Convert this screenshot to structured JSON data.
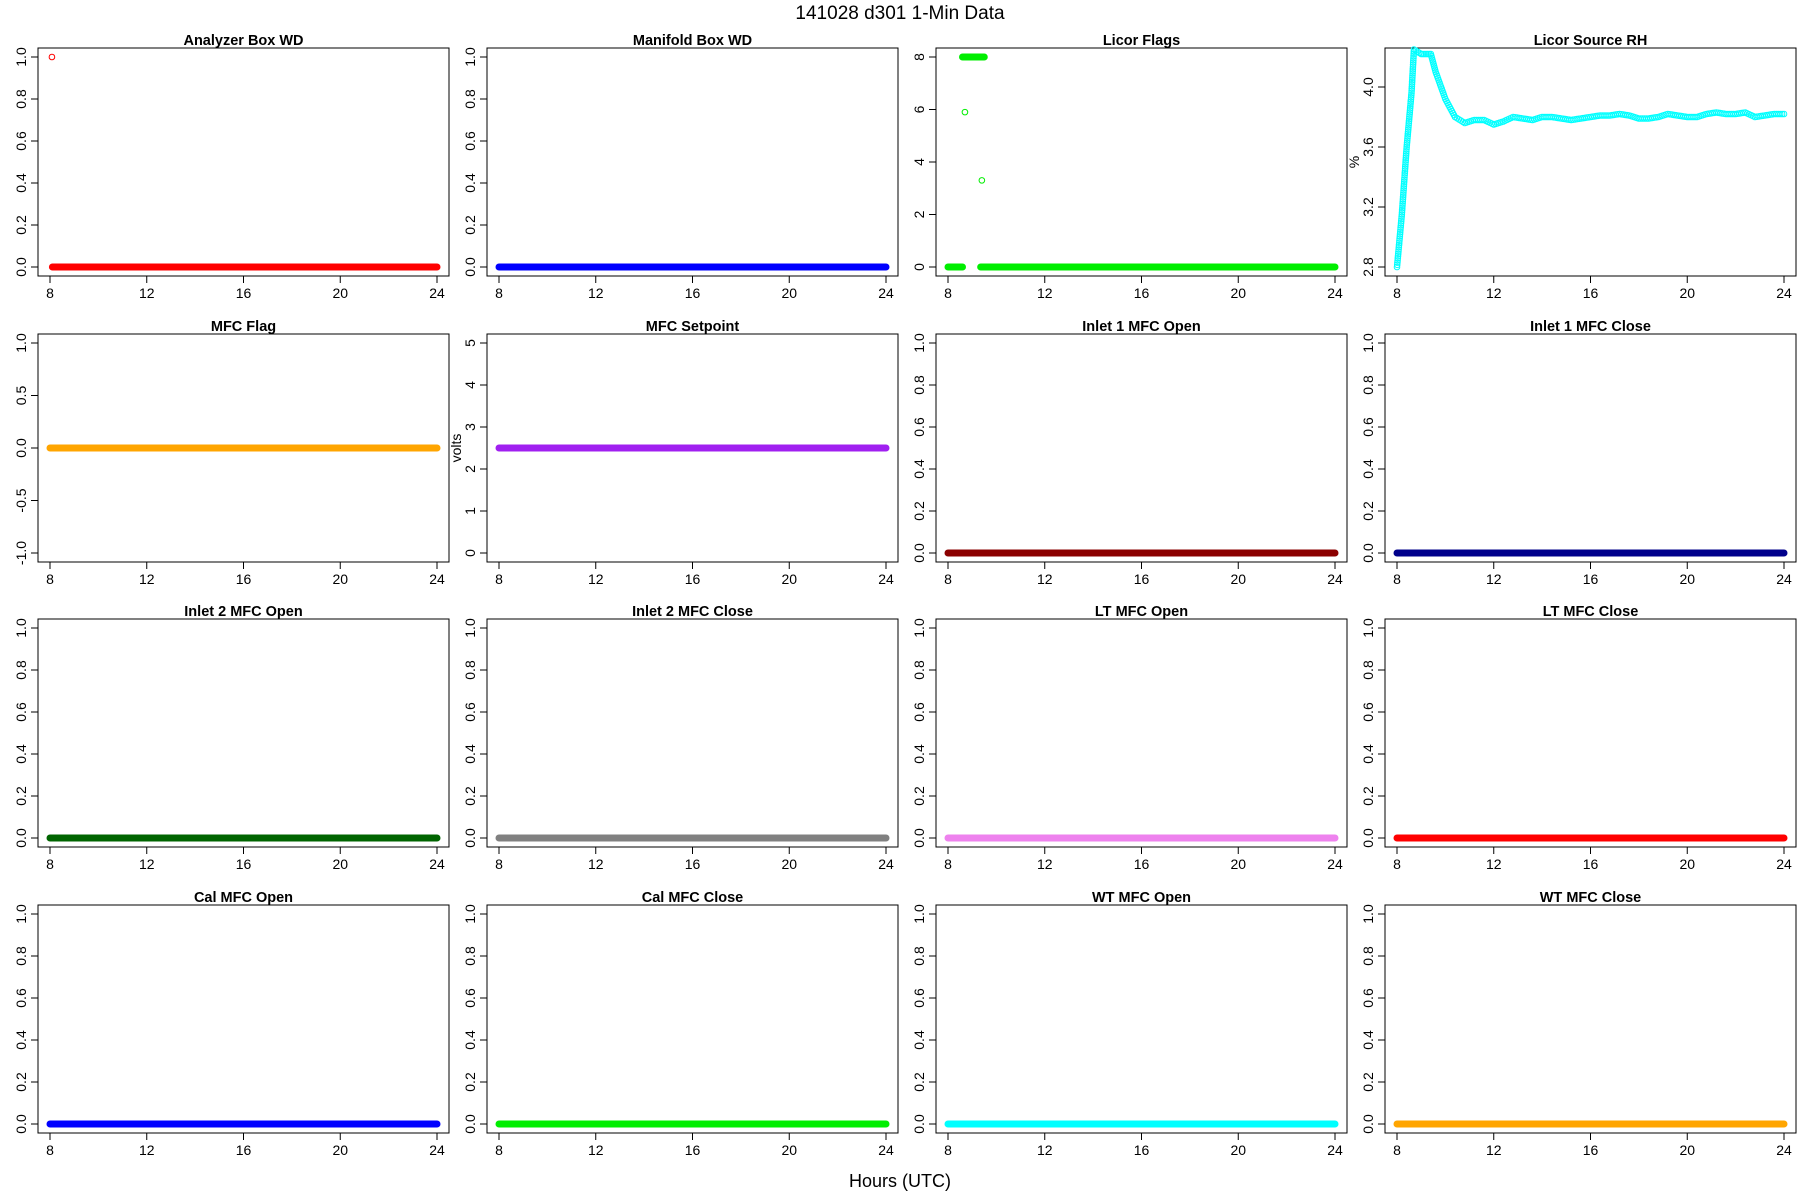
{
  "page": {
    "title": "141028   d301   1-Min Data",
    "xlabel": "Hours (UTC)"
  },
  "chart_data": [
    {
      "type": "scatter",
      "title": "Analyzer Box WD",
      "ylabel": "",
      "color": "#ff0000",
      "xlim": [
        8,
        24
      ],
      "ylim": [
        0,
        1
      ],
      "xticks": [
        8,
        12,
        16,
        20,
        24
      ],
      "yticks": [
        0,
        0.2,
        0.4,
        0.6,
        0.8,
        1
      ],
      "ytick_labels": [
        "0.0",
        "0.2",
        "0.4",
        "0.6",
        "0.8",
        "1.0"
      ],
      "series": [
        {
          "points": [
            [
              8.08,
              1
            ]
          ],
          "segments": [
            [
              8.1,
              24,
              0
            ]
          ]
        }
      ]
    },
    {
      "type": "scatter",
      "title": "Manifold Box WD",
      "ylabel": "",
      "color": "#0000ff",
      "xlim": [
        8,
        24
      ],
      "ylim": [
        0,
        1
      ],
      "xticks": [
        8,
        12,
        16,
        20,
        24
      ],
      "yticks": [
        0,
        0.2,
        0.4,
        0.6,
        0.8,
        1
      ],
      "ytick_labels": [
        "0.0",
        "0.2",
        "0.4",
        "0.6",
        "0.8",
        "1.0"
      ],
      "series": [
        {
          "points": [],
          "segments": [
            [
              8,
              24,
              0
            ]
          ]
        }
      ]
    },
    {
      "type": "scatter",
      "title": "Licor Flags",
      "ylabel": "",
      "color": "#00ee00",
      "xlim": [
        8,
        24
      ],
      "ylim": [
        0,
        8
      ],
      "xticks": [
        8,
        12,
        16,
        20,
        24
      ],
      "yticks": [
        0,
        2,
        4,
        6,
        8
      ],
      "ytick_labels": [
        "0",
        "2",
        "4",
        "6",
        "8"
      ],
      "series": [
        {
          "points": [
            [
              8.7,
              5.9
            ],
            [
              9.4,
              3.3
            ]
          ],
          "segments": [
            [
              8,
              8.6,
              0
            ],
            [
              8.6,
              9.5,
              8
            ],
            [
              9.35,
              24,
              0
            ]
          ]
        }
      ]
    },
    {
      "type": "scatter",
      "title": "Licor Source RH",
      "ylabel": "%",
      "color": "#00ffff",
      "xlim": [
        8,
        24
      ],
      "ylim": [
        2.8,
        4.2
      ],
      "xticks": [
        8,
        12,
        16,
        20,
        24
      ],
      "yticks": [
        2.8,
        3.2,
        3.6,
        4.0
      ],
      "ytick_labels": [
        "2.8",
        "3.2",
        "3.6",
        "4.0"
      ],
      "series": [
        {
          "x": [
            8,
            8.2,
            8.4,
            8.6,
            8.7,
            9,
            9.2,
            9.4,
            9.6,
            10,
            10.4,
            10.8,
            11.2,
            11.6,
            12,
            12.4,
            12.8,
            13.2,
            13.6,
            14,
            14.4,
            14.8,
            15.2,
            15.6,
            16,
            16.4,
            16.8,
            17.2,
            17.6,
            18,
            18.4,
            18.8,
            19.2,
            19.6,
            20,
            20.4,
            20.8,
            21.2,
            21.6,
            22,
            22.4,
            22.8,
            23.2,
            23.6,
            24
          ],
          "y": [
            2.8,
            3.15,
            3.6,
            3.96,
            4.25,
            4.22,
            4.22,
            4.22,
            4.1,
            3.92,
            3.8,
            3.76,
            3.78,
            3.78,
            3.75,
            3.77,
            3.8,
            3.79,
            3.78,
            3.8,
            3.8,
            3.79,
            3.78,
            3.79,
            3.8,
            3.81,
            3.81,
            3.82,
            3.81,
            3.79,
            3.79,
            3.8,
            3.82,
            3.81,
            3.8,
            3.8,
            3.82,
            3.83,
            3.82,
            3.82,
            3.83,
            3.8,
            3.81,
            3.82,
            3.82
          ]
        }
      ]
    },
    {
      "type": "scatter",
      "title": "MFC Flag",
      "ylabel": "",
      "color": "#ffa500",
      "xlim": [
        8,
        24
      ],
      "ylim": [
        -1,
        1
      ],
      "xticks": [
        8,
        12,
        16,
        20,
        24
      ],
      "yticks": [
        -1,
        -0.5,
        0,
        0.5,
        1
      ],
      "ytick_labels": [
        "-1.0",
        "-0.5",
        "0.0",
        "0.5",
        "1.0"
      ],
      "series": [
        {
          "points": [],
          "segments": [
            [
              8,
              24,
              0
            ]
          ]
        }
      ]
    },
    {
      "type": "scatter",
      "title": "MFC Setpoint",
      "ylabel": "volts",
      "color": "#a020f0",
      "xlim": [
        8,
        24
      ],
      "ylim": [
        0,
        5
      ],
      "xticks": [
        8,
        12,
        16,
        20,
        24
      ],
      "yticks": [
        0,
        1,
        2,
        3,
        4,
        5
      ],
      "ytick_labels": [
        "0",
        "1",
        "2",
        "3",
        "4",
        "5"
      ],
      "series": [
        {
          "points": [],
          "segments": [
            [
              8,
              24,
              2.5
            ]
          ]
        }
      ]
    },
    {
      "type": "scatter",
      "title": "Inlet 1 MFC Open",
      "ylabel": "",
      "color": "#8b0000",
      "xlim": [
        8,
        24
      ],
      "ylim": [
        0,
        1
      ],
      "xticks": [
        8,
        12,
        16,
        20,
        24
      ],
      "yticks": [
        0,
        0.2,
        0.4,
        0.6,
        0.8,
        1
      ],
      "ytick_labels": [
        "0.0",
        "0.2",
        "0.4",
        "0.6",
        "0.8",
        "1.0"
      ],
      "series": [
        {
          "points": [],
          "segments": [
            [
              8,
              24,
              0
            ]
          ]
        }
      ]
    },
    {
      "type": "scatter",
      "title": "Inlet 1 MFC Close",
      "ylabel": "",
      "color": "#00008b",
      "xlim": [
        8,
        24
      ],
      "ylim": [
        0,
        1
      ],
      "xticks": [
        8,
        12,
        16,
        20,
        24
      ],
      "yticks": [
        0,
        0.2,
        0.4,
        0.6,
        0.8,
        1
      ],
      "ytick_labels": [
        "0.0",
        "0.2",
        "0.4",
        "0.6",
        "0.8",
        "1.0"
      ],
      "series": [
        {
          "points": [],
          "segments": [
            [
              8,
              24,
              0
            ]
          ]
        }
      ]
    },
    {
      "type": "scatter",
      "title": "Inlet 2 MFC Open",
      "ylabel": "",
      "color": "#006400",
      "xlim": [
        8,
        24
      ],
      "ylim": [
        0,
        1
      ],
      "xticks": [
        8,
        12,
        16,
        20,
        24
      ],
      "yticks": [
        0,
        0.2,
        0.4,
        0.6,
        0.8,
        1
      ],
      "ytick_labels": [
        "0.0",
        "0.2",
        "0.4",
        "0.6",
        "0.8",
        "1.0"
      ],
      "series": [
        {
          "points": [],
          "segments": [
            [
              8,
              24,
              0
            ]
          ]
        }
      ]
    },
    {
      "type": "scatter",
      "title": "Inlet 2 MFC Close",
      "ylabel": "",
      "color": "#808080",
      "xlim": [
        8,
        24
      ],
      "ylim": [
        0,
        1
      ],
      "xticks": [
        8,
        12,
        16,
        20,
        24
      ],
      "yticks": [
        0,
        0.2,
        0.4,
        0.6,
        0.8,
        1
      ],
      "ytick_labels": [
        "0.0",
        "0.2",
        "0.4",
        "0.6",
        "0.8",
        "1.0"
      ],
      "series": [
        {
          "points": [],
          "segments": [
            [
              8,
              24,
              0
            ]
          ]
        }
      ]
    },
    {
      "type": "scatter",
      "title": "LT MFC Open",
      "ylabel": "",
      "color": "#ee82ee",
      "xlim": [
        8,
        24
      ],
      "ylim": [
        0,
        1
      ],
      "xticks": [
        8,
        12,
        16,
        20,
        24
      ],
      "yticks": [
        0,
        0.2,
        0.4,
        0.6,
        0.8,
        1
      ],
      "ytick_labels": [
        "0.0",
        "0.2",
        "0.4",
        "0.6",
        "0.8",
        "1.0"
      ],
      "series": [
        {
          "points": [],
          "segments": [
            [
              8,
              24,
              0
            ]
          ]
        }
      ]
    },
    {
      "type": "scatter",
      "title": "LT MFC Close",
      "ylabel": "",
      "color": "#ff0000",
      "xlim": [
        8,
        24
      ],
      "ylim": [
        0,
        1
      ],
      "xticks": [
        8,
        12,
        16,
        20,
        24
      ],
      "yticks": [
        0,
        0.2,
        0.4,
        0.6,
        0.8,
        1
      ],
      "ytick_labels": [
        "0.0",
        "0.2",
        "0.4",
        "0.6",
        "0.8",
        "1.0"
      ],
      "series": [
        {
          "points": [],
          "segments": [
            [
              8,
              24,
              0
            ]
          ]
        }
      ]
    },
    {
      "type": "scatter",
      "title": "Cal MFC Open",
      "ylabel": "",
      "color": "#0000ff",
      "xlim": [
        8,
        24
      ],
      "ylim": [
        0,
        1
      ],
      "xticks": [
        8,
        12,
        16,
        20,
        24
      ],
      "yticks": [
        0,
        0.2,
        0.4,
        0.6,
        0.8,
        1
      ],
      "ytick_labels": [
        "0.0",
        "0.2",
        "0.4",
        "0.6",
        "0.8",
        "1.0"
      ],
      "series": [
        {
          "points": [],
          "segments": [
            [
              8,
              24,
              0
            ]
          ]
        }
      ]
    },
    {
      "type": "scatter",
      "title": "Cal MFC Close",
      "ylabel": "",
      "color": "#00ee00",
      "xlim": [
        8,
        24
      ],
      "ylim": [
        0,
        1
      ],
      "xticks": [
        8,
        12,
        16,
        20,
        24
      ],
      "yticks": [
        0,
        0.2,
        0.4,
        0.6,
        0.8,
        1
      ],
      "ytick_labels": [
        "0.0",
        "0.2",
        "0.4",
        "0.6",
        "0.8",
        "1.0"
      ],
      "series": [
        {
          "points": [],
          "segments": [
            [
              8,
              24,
              0
            ]
          ]
        }
      ]
    },
    {
      "type": "scatter",
      "title": "WT MFC Open",
      "ylabel": "",
      "color": "#00ffff",
      "xlim": [
        8,
        24
      ],
      "ylim": [
        0,
        1
      ],
      "xticks": [
        8,
        12,
        16,
        20,
        24
      ],
      "yticks": [
        0,
        0.2,
        0.4,
        0.6,
        0.8,
        1
      ],
      "ytick_labels": [
        "0.0",
        "0.2",
        "0.4",
        "0.6",
        "0.8",
        "1.0"
      ],
      "series": [
        {
          "points": [],
          "segments": [
            [
              8,
              24,
              0
            ]
          ]
        }
      ]
    },
    {
      "type": "scatter",
      "title": "WT MFC Close",
      "ylabel": "",
      "color": "#ffa500",
      "xlim": [
        8,
        24
      ],
      "ylim": [
        0,
        1
      ],
      "xticks": [
        8,
        12,
        16,
        20,
        24
      ],
      "yticks": [
        0,
        0.2,
        0.4,
        0.6,
        0.8,
        1
      ],
      "ytick_labels": [
        "0.0",
        "0.2",
        "0.4",
        "0.6",
        "0.8",
        "1.0"
      ],
      "series": [
        {
          "points": [],
          "segments": [
            [
              8,
              24,
              0
            ]
          ]
        }
      ]
    }
  ]
}
